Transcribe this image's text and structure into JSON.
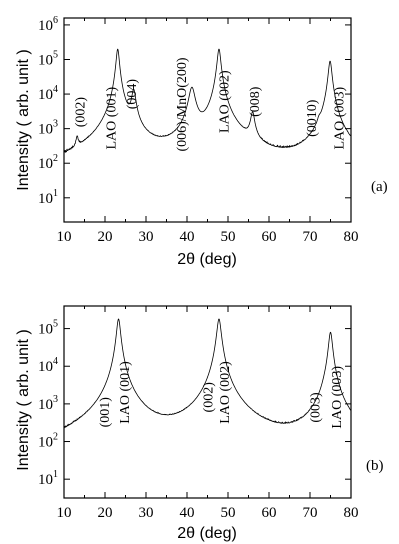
{
  "chart_data": [
    {
      "type": "line",
      "panel_label": "(a)",
      "xlabel": "2θ (deg)",
      "ylabel": "Intensity ( arb. unit )",
      "xlim": [
        10,
        80
      ],
      "ylim_log10": [
        0.3,
        6.2
      ],
      "log_y": true,
      "x_ticks": [
        "10",
        "20",
        "30",
        "40",
        "50",
        "60",
        "70",
        "80"
      ],
      "y_ticks": [
        {
          "base": "10",
          "exp": "1"
        },
        {
          "base": "10",
          "exp": "2"
        },
        {
          "base": "10",
          "exp": "3"
        },
        {
          "base": "10",
          "exp": "4"
        },
        {
          "base": "10",
          "exp": "5"
        },
        {
          "base": "10",
          "exp": "6"
        }
      ],
      "baseline": 15,
      "peaks": [
        {
          "x": 13.2,
          "y": 300,
          "w": 0.35
        },
        {
          "x": 23.1,
          "y": 200000,
          "w": 0.45
        },
        {
          "x": 27.0,
          "y": 12000,
          "w": 0.6
        },
        {
          "x": 41.2,
          "y": 15000,
          "w": 0.9
        },
        {
          "x": 47.8,
          "y": 200000,
          "w": 0.5
        },
        {
          "x": 56.0,
          "y": 2500,
          "w": 0.6
        },
        {
          "x": 72.2,
          "y": 500,
          "w": 0.5
        },
        {
          "x": 74.9,
          "y": 90000,
          "w": 0.5
        }
      ],
      "annotations": [
        {
          "text": "(002)",
          "x": 15.0,
          "y": 3000
        },
        {
          "text": "LAO (001)",
          "x": 22.6,
          "y": 2000
        },
        {
          "text": "(004)",
          "x": 27.6,
          "y": 10000
        },
        {
          "text": "(006)/MnO(200)",
          "x": 39.8,
          "y": 5000
        },
        {
          "text": "LAO (002)",
          "x": 50.1,
          "y": 6000
        },
        {
          "text": "(008)",
          "x": 57.5,
          "y": 6000
        },
        {
          "text": "(0010)",
          "x": 71.5,
          "y": 2000
        },
        {
          "text": "LAO (003)",
          "x": 78.2,
          "y": 2000
        }
      ]
    },
    {
      "type": "line",
      "panel_label": "(b)",
      "xlabel": "2θ (deg)",
      "ylabel": "Intensity ( arb. unit )",
      "xlim": [
        10,
        80
      ],
      "ylim_log10": [
        0.5,
        5.6
      ],
      "log_y": true,
      "x_ticks": [
        "10",
        "20",
        "30",
        "40",
        "50",
        "60",
        "70",
        "80"
      ],
      "y_ticks": [
        {
          "base": "10",
          "exp": "1"
        },
        {
          "base": "10",
          "exp": "2"
        },
        {
          "base": "10",
          "exp": "3"
        },
        {
          "base": "10",
          "exp": "4"
        },
        {
          "base": "10",
          "exp": "5"
        }
      ],
      "baseline": 12,
      "peaks": [
        {
          "x": 23.3,
          "y": 180000,
          "w": 0.55
        },
        {
          "x": 47.8,
          "y": 180000,
          "w": 0.6
        },
        {
          "x": 73.5,
          "y": 150,
          "w": 0.5
        },
        {
          "x": 75.0,
          "y": 80000,
          "w": 0.55
        }
      ],
      "annotations": [
        {
          "text": "(001)",
          "x": 21.0,
          "y": 600
        },
        {
          "text": "LAO (001)",
          "x": 25.8,
          "y": 2000
        },
        {
          "text": "(002)",
          "x": 46.2,
          "y": 1500
        },
        {
          "text": "LAO (002)",
          "x": 50.3,
          "y": 2000
        },
        {
          "text": "(003)",
          "x": 72.3,
          "y": 800
        },
        {
          "text": "LAO (003)",
          "x": 77.5,
          "y": 1500
        }
      ]
    }
  ]
}
